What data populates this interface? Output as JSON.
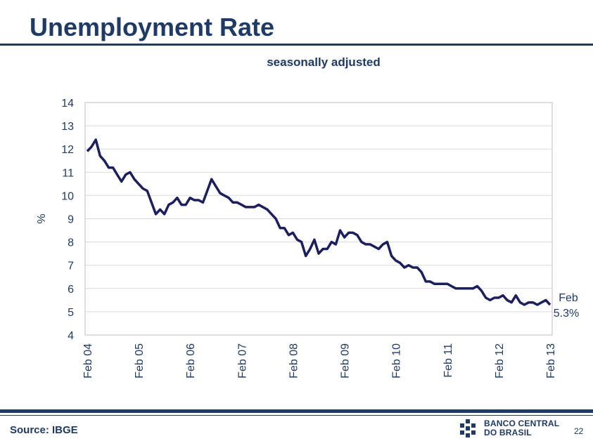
{
  "header": {
    "title": "Unemployment Rate"
  },
  "footer": {
    "source": "Source: IBGE",
    "logo_line1": "BANCO CENTRAL",
    "logo_line2": "DO BRASIL",
    "page_number": "22"
  },
  "colors": {
    "brand": "#1f3a64",
    "series": "#1b1f5c",
    "grid": "#d9d9d9"
  },
  "chart_data": {
    "type": "line",
    "subtitle": "seasonally adjusted",
    "ylabel": "%",
    "ylim": [
      4,
      14
    ],
    "yticks": [
      4,
      5,
      6,
      7,
      8,
      9,
      10,
      11,
      12,
      13,
      14
    ],
    "xticks": [
      "Feb 04",
      "Feb 05",
      "Feb 06",
      "Feb 07",
      "Feb 08",
      "Feb 09",
      "Feb 10",
      "Feb 11",
      "Feb 12",
      "Feb 13"
    ],
    "grid": "horizontal",
    "annotation": {
      "line1": "Feb",
      "line2": "5.3%"
    },
    "series": [
      {
        "start": "Feb 04",
        "frequency": "monthly",
        "values": [
          11.9,
          12.1,
          12.4,
          11.7,
          11.5,
          11.2,
          11.2,
          10.9,
          10.6,
          10.9,
          11.0,
          10.7,
          10.5,
          10.3,
          10.2,
          9.7,
          9.2,
          9.4,
          9.2,
          9.6,
          9.7,
          9.9,
          9.6,
          9.6,
          9.9,
          9.8,
          9.8,
          9.7,
          10.2,
          10.7,
          10.4,
          10.1,
          10.0,
          9.9,
          9.7,
          9.7,
          9.6,
          9.5,
          9.5,
          9.5,
          9.6,
          9.5,
          9.4,
          9.2,
          9.0,
          8.6,
          8.6,
          8.3,
          8.4,
          8.1,
          8.0,
          7.4,
          7.7,
          8.1,
          7.5,
          7.7,
          7.7,
          8.0,
          7.9,
          8.5,
          8.2,
          8.4,
          8.4,
          8.3,
          8.0,
          7.9,
          7.9,
          7.8,
          7.7,
          7.9,
          8.0,
          7.4,
          7.2,
          7.1,
          6.9,
          7.0,
          6.9,
          6.9,
          6.7,
          6.3,
          6.3,
          6.2,
          6.2,
          6.2,
          6.2,
          6.1,
          6.0,
          6.0,
          6.0,
          6.0,
          6.0,
          6.1,
          5.9,
          5.6,
          5.5,
          5.6,
          5.6,
          5.7,
          5.5,
          5.4,
          5.7,
          5.4,
          5.3,
          5.4,
          5.4,
          5.3,
          5.4,
          5.5,
          5.3
        ]
      }
    ]
  }
}
